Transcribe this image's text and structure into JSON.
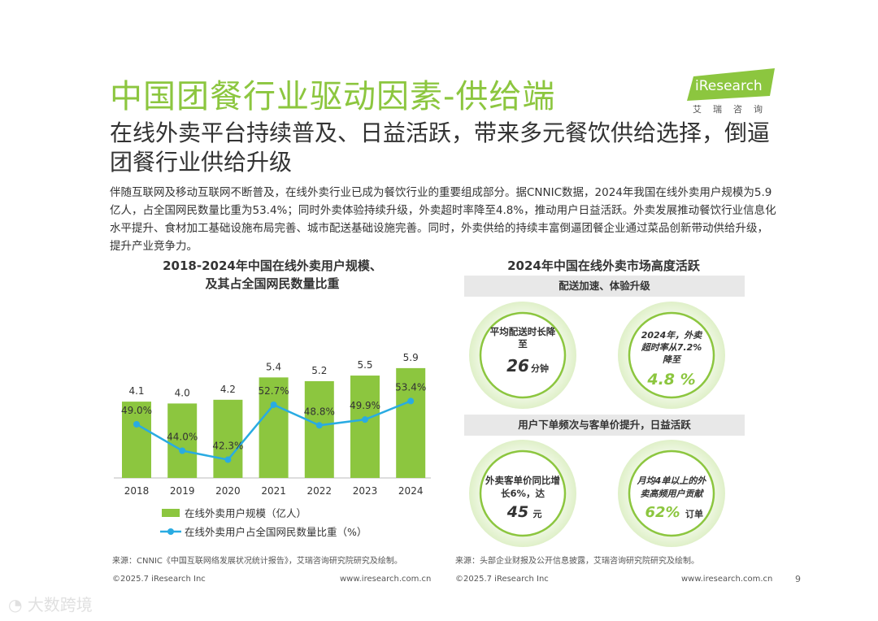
{
  "header": {
    "title": "中国团餐行业驱动因素-供给端",
    "logo_text": "iResearch",
    "logo_sub": "艾瑞咨询"
  },
  "subtitle": "在线外卖平台持续普及、日益活跃，带来多元餐饮供给选择，倒逼团餐行业供给升级",
  "body_text": "伴随互联网及移动互联网不断普及，在线外卖行业已成为餐饮行业的重要组成部分。据CNNIC数据，2024年我国在线外卖用户规模为5.9亿人，占全国网民数量比重为53.4%；同时外卖体验持续升级，外卖超时率降至4.8%，推动用户日益活跃。外卖发展推动餐饮行业信息化水平提升、食材加工基础设施布局完善、城市配送基础设施完善。同时，外卖供给的持续丰富倒逼团餐企业通过菜品创新带动供给升级，提升产业竞争力。",
  "left_chart": {
    "title_line1": "2018-2024年中国在线外卖用户规模、",
    "title_line2": "及其占全国网民数量比重",
    "source": "来源：CNNIC《中国互联网络发展状况统计报告》，艾瑞咨询研究院研究及绘制。"
  },
  "chart_data": {
    "type": "bar",
    "title": "2018-2024年中国在线外卖用户规模、及其占全国网民数量比重",
    "categories": [
      "2018",
      "2019",
      "2020",
      "2021",
      "2022",
      "2023",
      "2024"
    ],
    "series": [
      {
        "name": "在线外卖用户规模（亿人）",
        "type": "bar",
        "values": [
          4.1,
          4.0,
          4.2,
          5.4,
          5.2,
          5.5,
          5.9
        ],
        "labels": [
          "4.1",
          "4.0",
          "4.2",
          "5.4",
          "5.2",
          "5.5",
          "5.9"
        ]
      },
      {
        "name": "在线外卖用户占全国网民数量比重（%）",
        "type": "line",
        "values": [
          49.0,
          44.0,
          42.3,
          52.7,
          48.8,
          49.9,
          53.4
        ],
        "labels": [
          "49.0%",
          "44.0%",
          "42.3%",
          "52.7%",
          "48.8%",
          "49.9%",
          "53.4%"
        ]
      }
    ],
    "colors": {
      "bar": "#8cc63f",
      "line": "#29abe2"
    },
    "legend": [
      "在线外卖用户规模（亿人）",
      "在线外卖用户占全国网民数量比重（%）"
    ],
    "legend_position": "bottom"
  },
  "right": {
    "title": "2024年中国在线外卖市场高度活跃",
    "band1": "配送加速、体验升级",
    "band2": "用户下单频次与客单价提升，日益活跃",
    "circle1": {
      "line1": "平均配送时长降",
      "line2": "至",
      "value": "26",
      "unit": "分钟"
    },
    "circle2": {
      "line1": "2024年，外卖",
      "line2": "超时率从7.2%",
      "line3": "降至",
      "value": "4.8 %"
    },
    "circle3": {
      "line1": "外卖客单价同比增",
      "line2": "长6%，达",
      "value": "45",
      "unit": "元"
    },
    "circle4": {
      "line1": "月均4单以上的外",
      "line2": "卖高频用户贡献",
      "value": "62%",
      "unit": "订单"
    },
    "source": "来源：头部企业财报及公开信息披露，艾瑞咨询研究院研究及绘制。"
  },
  "footer": {
    "left_copyright": "©2025.7 iResearch Inc",
    "left_url": "www.iresearch.com.cn",
    "right_copyright": "©2025.7 iResearch Inc",
    "right_url": "www.iresearch.com.cn",
    "page": "9"
  },
  "watermark": "大数跨境",
  "colors": {
    "accent": "#8cc63f",
    "line": "#29abe2"
  }
}
